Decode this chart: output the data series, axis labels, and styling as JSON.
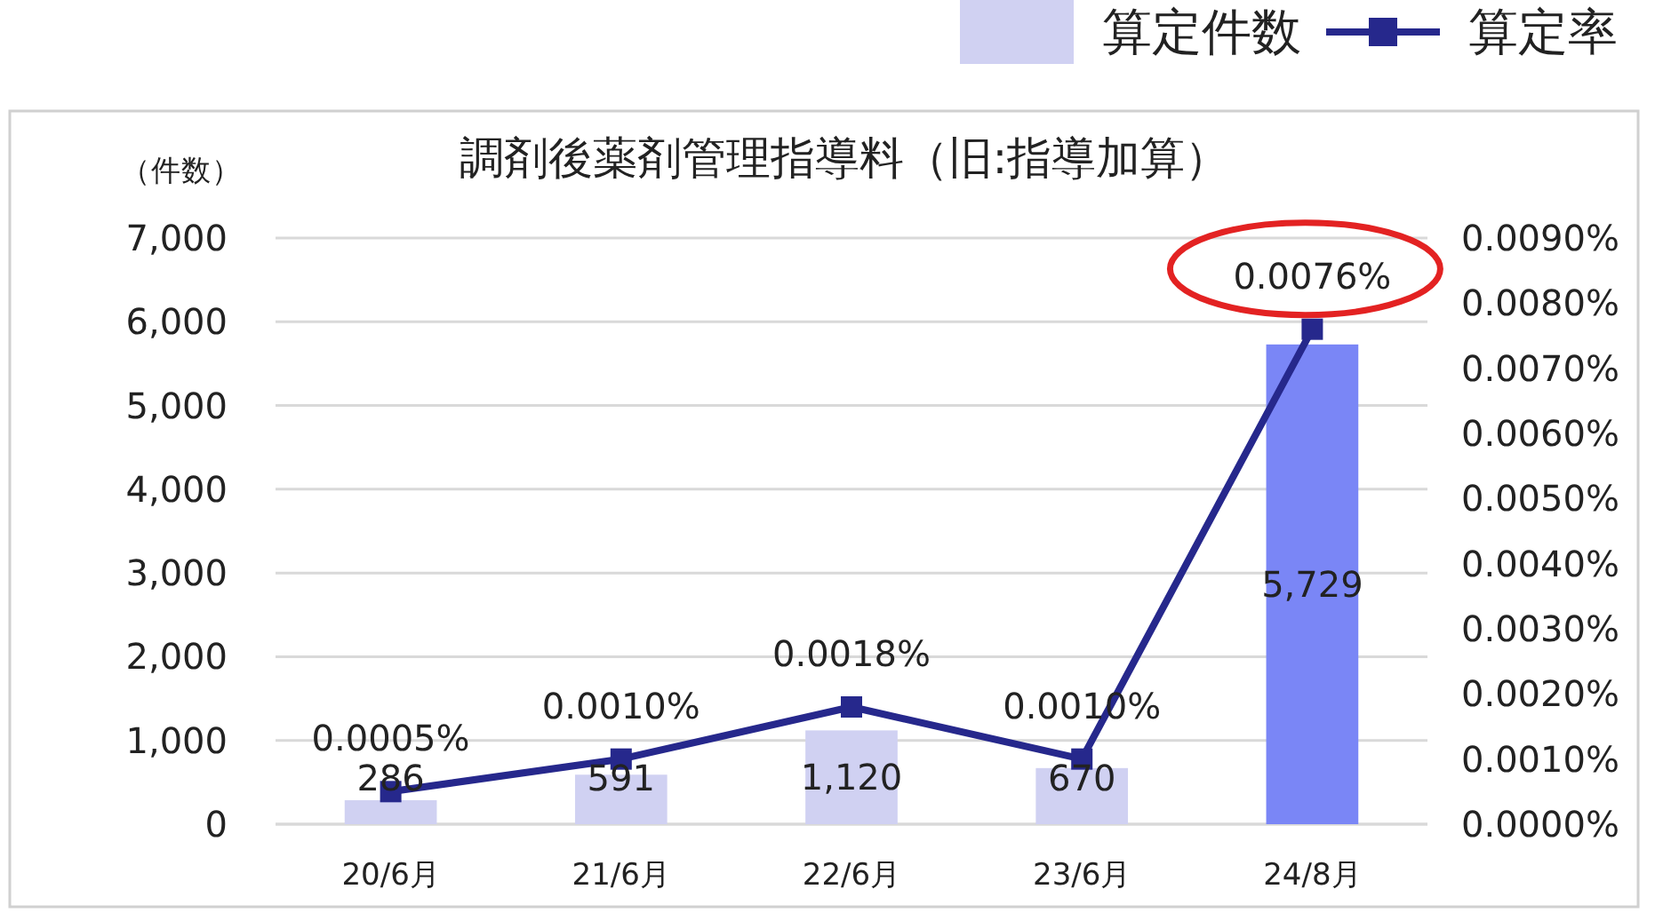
{
  "chart_data": {
    "type": "bar",
    "title": "調剤後薬剤管理指導料（旧:指導加算）",
    "ylabel": "（件数）",
    "categories": [
      "20/6月",
      "21/6月",
      "22/6月",
      "23/6月",
      "24/8月"
    ],
    "series": [
      {
        "name": "算定件数",
        "color": "#d0d1f2",
        "colors": [
          "#d0d1f2",
          "#d0d1f2",
          "#d0d1f2",
          "#d0d1f2",
          "#7a86f6"
        ],
        "values": [
          286,
          591,
          1120,
          670,
          5729
        ],
        "value_labels": [
          "286",
          "591",
          "1,120",
          "670",
          "5,729"
        ]
      },
      {
        "name": "算定率",
        "type": "line",
        "axis": "y2",
        "color": "#26288c",
        "values": [
          0.0005,
          0.001,
          0.0018,
          0.001,
          0.0076
        ],
        "value_labels": [
          "0.0005%",
          "0.0010%",
          "0.0018%",
          "0.0010%",
          "0.0076%"
        ]
      }
    ],
    "ylim": [
      0,
      7000
    ],
    "yticks": [
      0,
      {
        "value": 1000,
        "label": "1,000"
      },
      {
        "value": 2000,
        "label": "2,000"
      },
      {
        "value": 3000,
        "label": "3,000"
      },
      {
        "value": 4000,
        "label": "4,000"
      },
      {
        "value": 5000,
        "label": "5,000"
      },
      {
        "value": 6000,
        "label": "6,000"
      },
      {
        "value": 7000,
        "label": "7,000"
      }
    ],
    "y2lim": [
      0,
      0.009
    ],
    "y2ticks": [
      {
        "value": 0,
        "label": "0.0000%"
      },
      {
        "value": 0.001,
        "label": "0.0010%"
      },
      {
        "value": 0.002,
        "label": "0.0020%"
      },
      {
        "value": 0.003,
        "label": "0.0030%"
      },
      {
        "value": 0.004,
        "label": "0.0040%"
      },
      {
        "value": 0.005,
        "label": "0.0050%"
      },
      {
        "value": 0.006,
        "label": "0.0060%"
      },
      {
        "value": 0.007,
        "label": "0.0070%"
      },
      {
        "value": 0.008,
        "label": "0.0080%"
      },
      {
        "value": 0.009,
        "label": "0.0090%"
      }
    ],
    "grid": "y",
    "legend": "top right",
    "marker": "square",
    "line_style": "solid"
  }
}
